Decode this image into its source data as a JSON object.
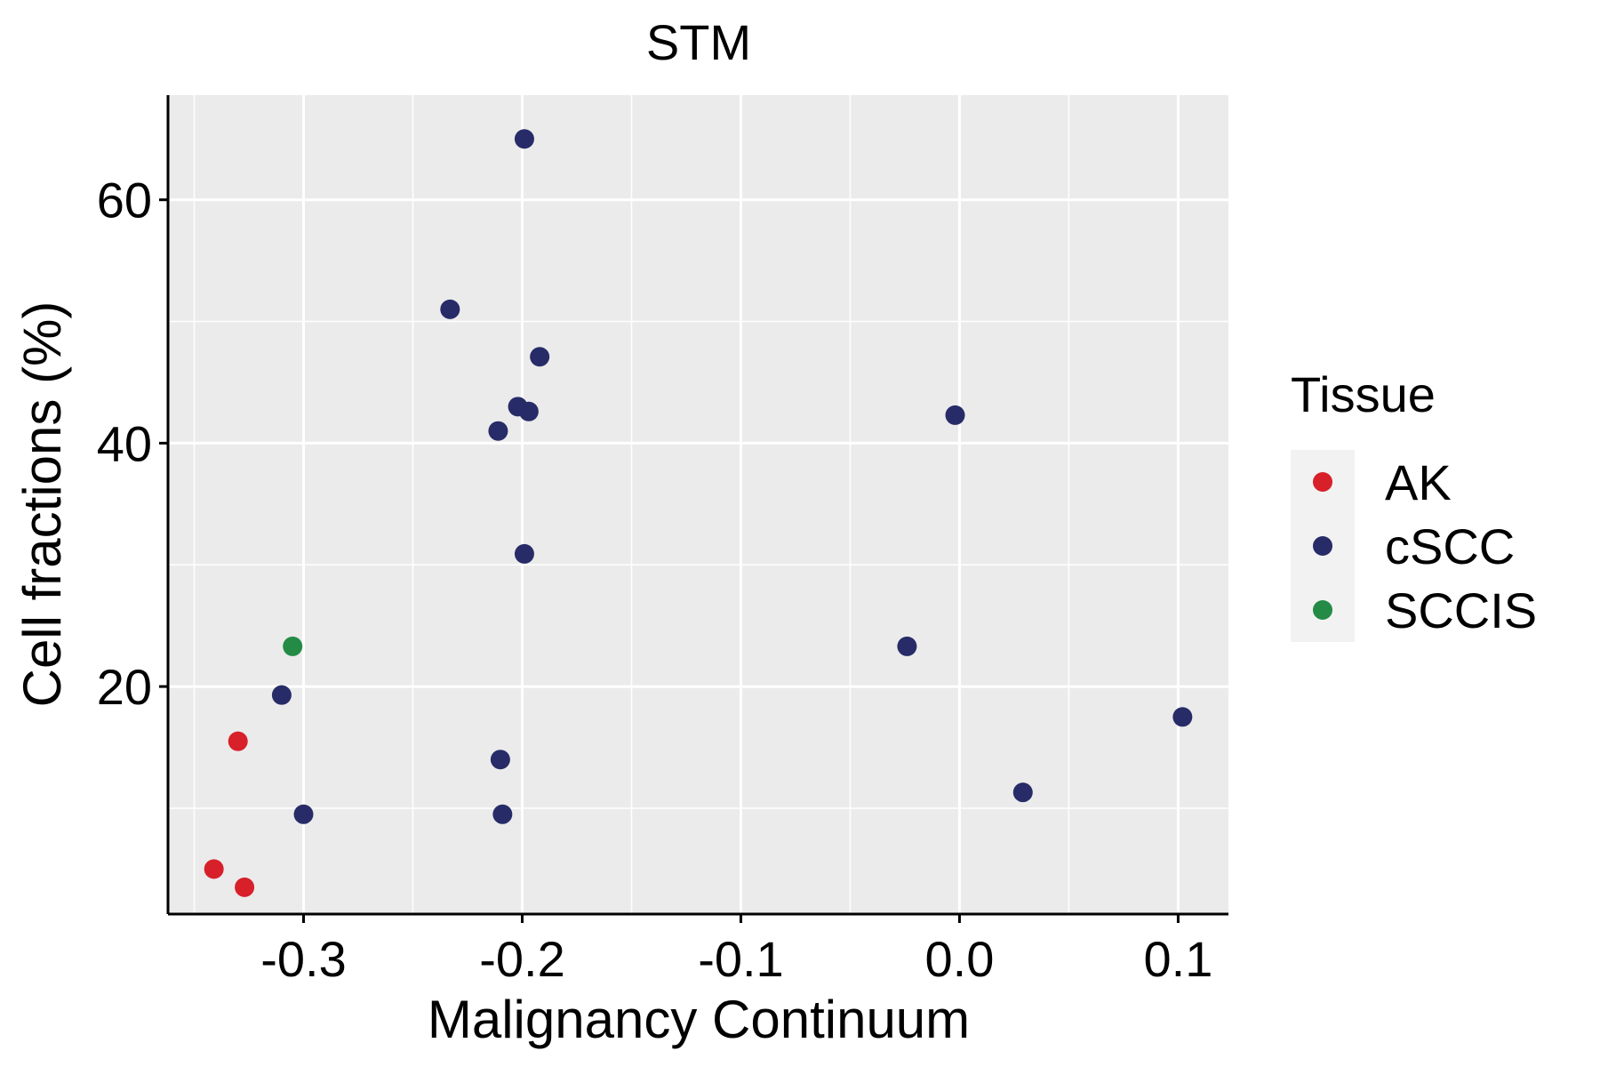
{
  "chart_data": {
    "type": "scatter",
    "title": "STM",
    "xlabel": "Malignancy Continuum",
    "ylabel": "Cell fractions (%)",
    "xlim": [
      -0.362,
      0.123
    ],
    "ylim": [
      1.3,
      68.6
    ],
    "x_ticks": [
      -0.3,
      -0.2,
      -0.1,
      0.0,
      0.1
    ],
    "x_tick_labels": [
      "-0.3",
      "-0.2",
      "-0.1",
      "0.0",
      "0.1"
    ],
    "y_ticks": [
      20,
      40,
      60
    ],
    "y_tick_labels": [
      "20",
      "40",
      "60"
    ],
    "grid": true,
    "legend": {
      "title": "Tissue",
      "position": "right",
      "entries": [
        {
          "label": "AK",
          "color": "#d7202a"
        },
        {
          "label": "cSCC",
          "color": "#272c68"
        },
        {
          "label": "SCCIS",
          "color": "#238b45"
        }
      ]
    },
    "series": [
      {
        "name": "AK",
        "color": "#d7202a",
        "points": [
          {
            "x": -0.341,
            "y": 5.0
          },
          {
            "x": -0.327,
            "y": 3.5
          },
          {
            "x": -0.33,
            "y": 15.5
          }
        ]
      },
      {
        "name": "cSCC",
        "color": "#272c68",
        "points": [
          {
            "x": -0.199,
            "y": 65.0
          },
          {
            "x": -0.233,
            "y": 51.0
          },
          {
            "x": -0.192,
            "y": 47.1
          },
          {
            "x": -0.202,
            "y": 43.0
          },
          {
            "x": -0.197,
            "y": 42.6
          },
          {
            "x": -0.211,
            "y": 41.0
          },
          {
            "x": -0.002,
            "y": 42.3
          },
          {
            "x": -0.199,
            "y": 30.9
          },
          {
            "x": -0.024,
            "y": 23.3
          },
          {
            "x": -0.31,
            "y": 19.3
          },
          {
            "x": 0.102,
            "y": 17.5
          },
          {
            "x": -0.21,
            "y": 14.0
          },
          {
            "x": 0.029,
            "y": 11.3
          },
          {
            "x": -0.3,
            "y": 9.5
          },
          {
            "x": -0.209,
            "y": 9.5
          }
        ]
      },
      {
        "name": "SCCIS",
        "color": "#238b45",
        "points": [
          {
            "x": -0.305,
            "y": 23.3
          }
        ]
      }
    ]
  }
}
